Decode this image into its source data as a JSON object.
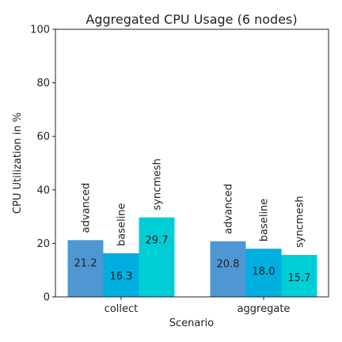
{
  "chart_data": {
    "type": "bar",
    "title": "Aggregated CPU Usage (6 nodes)",
    "xlabel": "Scenario",
    "ylabel": "CPU Utilization in %",
    "ylim": [
      0,
      100
    ],
    "yticks": [
      "0",
      "20",
      "40",
      "60",
      "80",
      "100"
    ],
    "grid": false,
    "categories": [
      "collect",
      "aggregate"
    ],
    "series": [
      {
        "name": "advanced",
        "values": [
          21.2,
          20.8
        ],
        "color": "#4f97d3"
      },
      {
        "name": "baseline",
        "values": [
          16.3,
          18.0
        ],
        "color": "#00aee0"
      },
      {
        "name": "syncmesh",
        "values": [
          29.7,
          15.7
        ],
        "color": "#00ced6"
      }
    ],
    "value_labels": [
      [
        "21.2",
        "20.8"
      ],
      [
        "16.3",
        "18.0"
      ],
      [
        "29.7",
        "15.7"
      ]
    ]
  }
}
